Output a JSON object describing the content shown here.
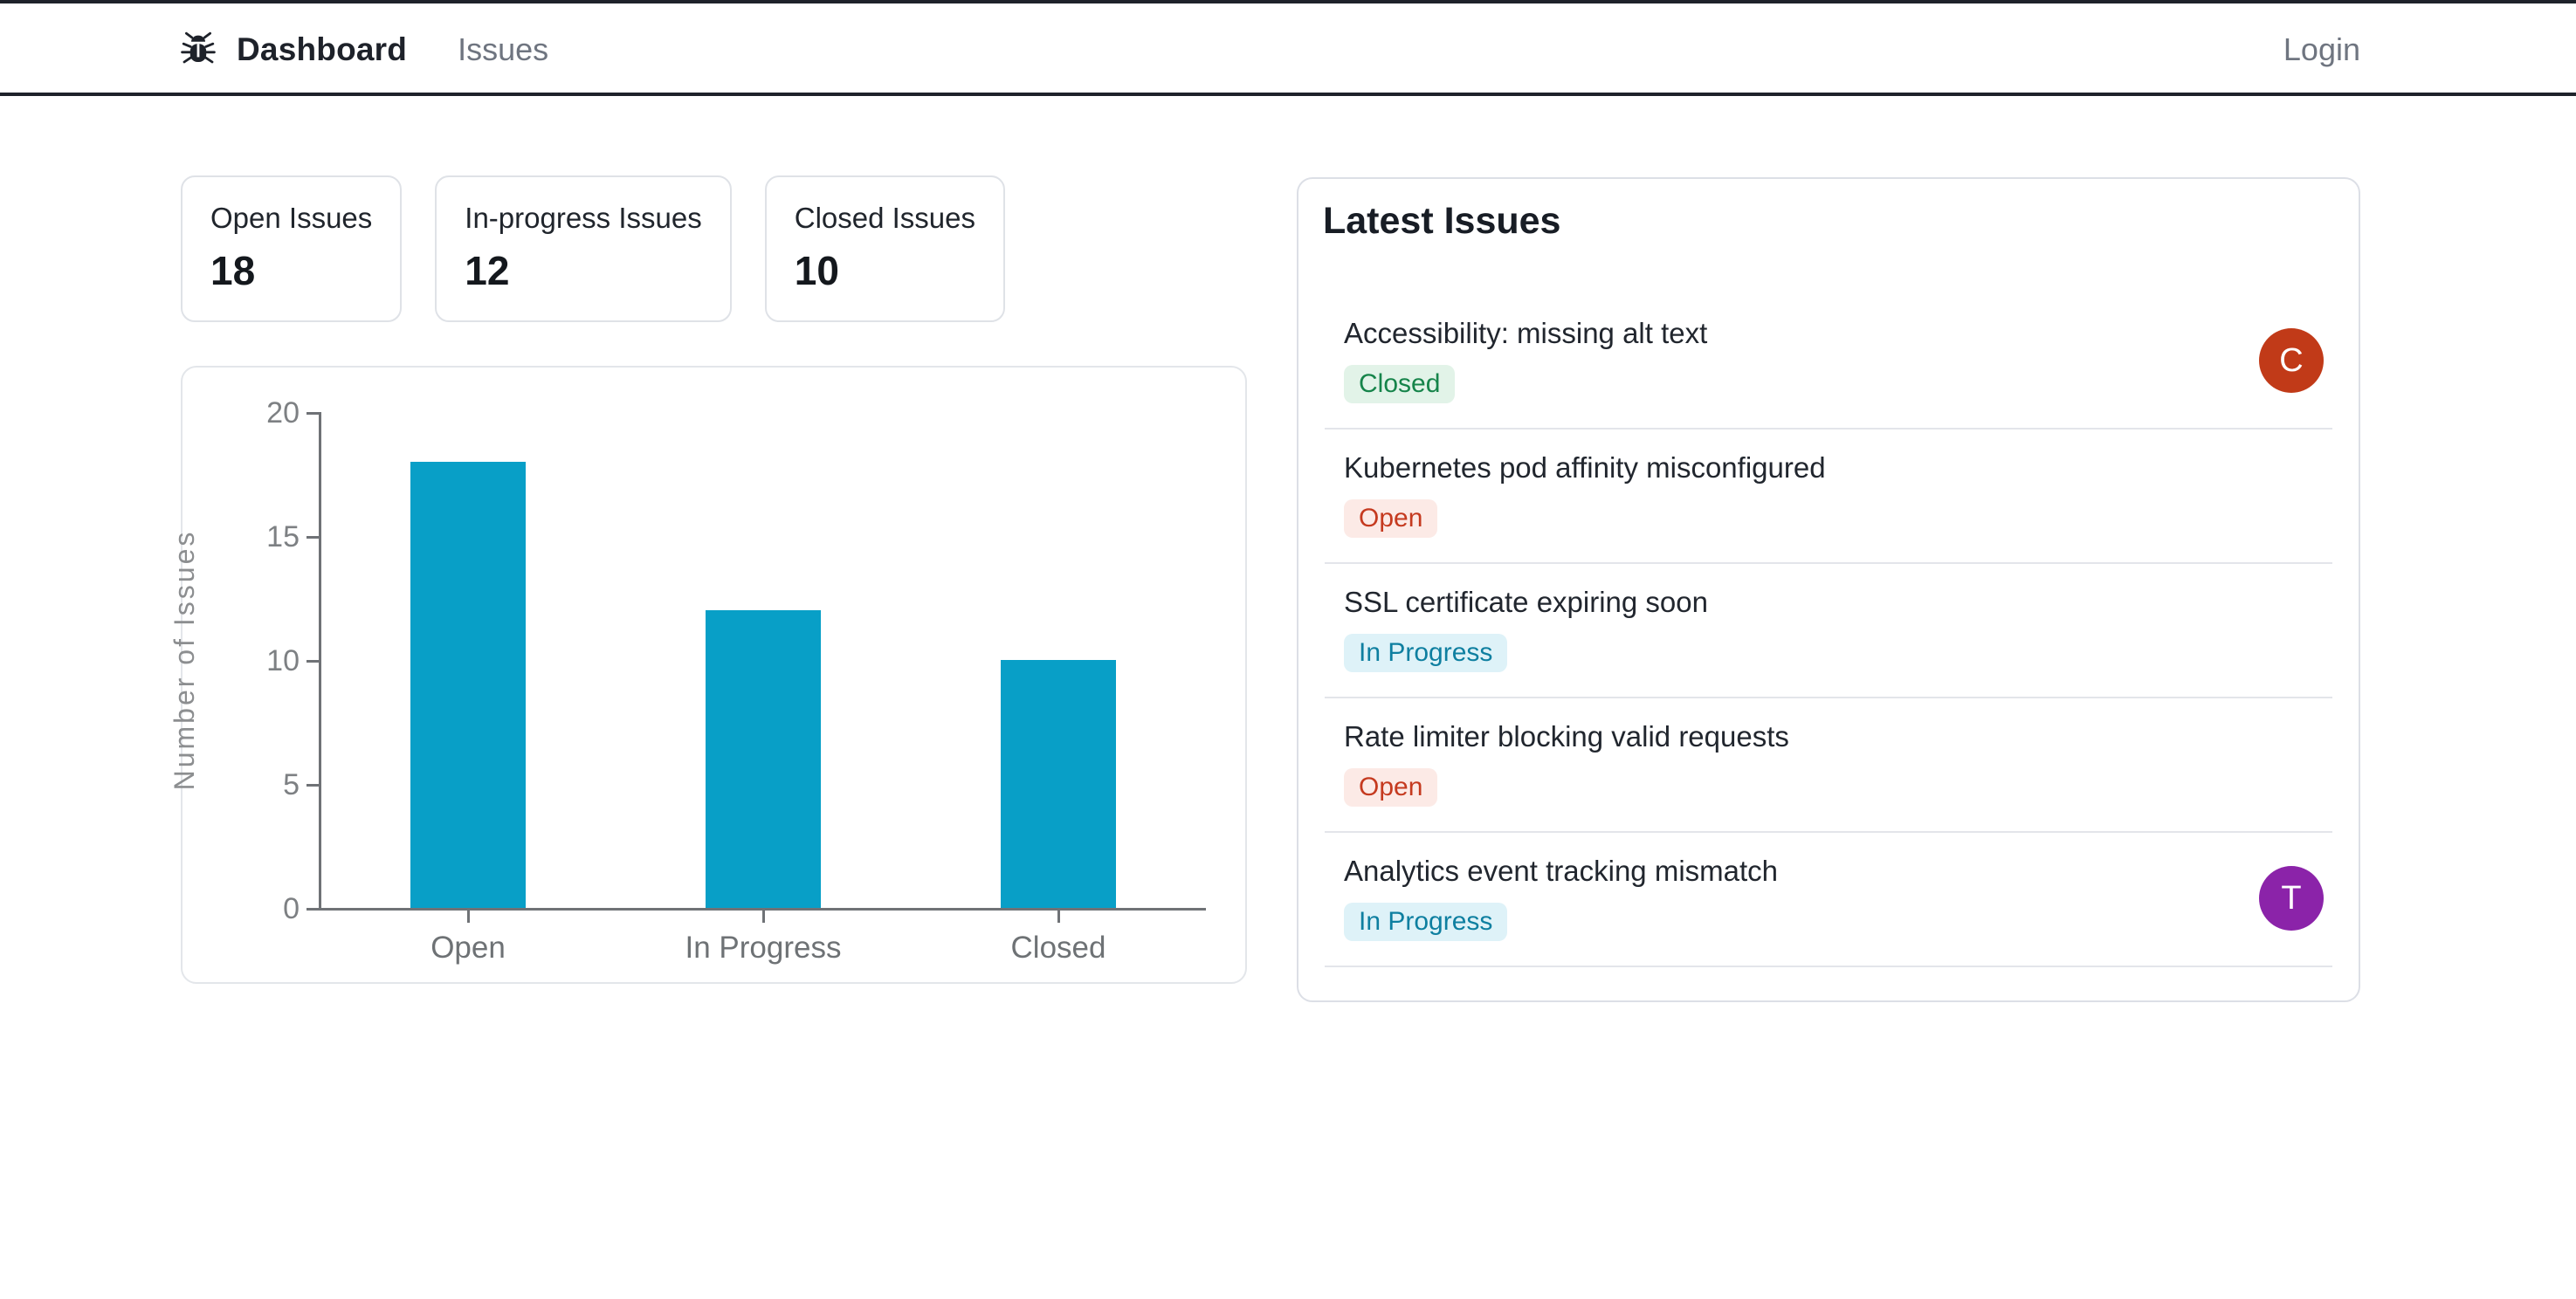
{
  "header": {
    "brand_label": "Dashboard",
    "nav_issues_label": "Issues",
    "login_label": "Login",
    "icon": "bug-icon"
  },
  "stats": [
    {
      "label": "Open Issues",
      "value": "18"
    },
    {
      "label": "In-progress Issues",
      "value": "12"
    },
    {
      "label": "Closed Issues",
      "value": "10"
    }
  ],
  "chart_data": {
    "type": "bar",
    "categories": [
      "Open",
      "In Progress",
      "Closed"
    ],
    "values": [
      18,
      12,
      10
    ],
    "title": "",
    "xlabel": "",
    "ylabel": "Number of Issues",
    "ylim": [
      0,
      20
    ],
    "yticks": [
      0,
      5,
      10,
      15,
      20
    ],
    "grid": false,
    "legend": false,
    "bar_color": "#089fc7",
    "axis_color": "#6f7276",
    "tick_label_color": "#7d8083"
  },
  "latest_issues": {
    "title": "Latest Issues",
    "items": [
      {
        "title": "Accessibility: missing alt text",
        "status": "Closed",
        "avatar": {
          "letter": "C",
          "color": "#c13a18"
        }
      },
      {
        "title": "Kubernetes pod affinity misconfigured",
        "status": "Open",
        "avatar": null
      },
      {
        "title": "SSL certificate expiring soon",
        "status": "In Progress",
        "avatar": null
      },
      {
        "title": "Rate limiter blocking valid requests",
        "status": "Open",
        "avatar": null
      },
      {
        "title": "Analytics event tracking mismatch",
        "status": "In Progress",
        "avatar": {
          "letter": "T",
          "color": "#8b23a9"
        }
      }
    ],
    "status_styles": {
      "Open": {
        "bg": "#fceae6",
        "text": "#c53a1f"
      },
      "In Progress": {
        "bg": "#def2f8",
        "text": "#0e7fa0"
      },
      "Closed": {
        "bg": "#e2f3e8",
        "text": "#16844a"
      }
    }
  }
}
